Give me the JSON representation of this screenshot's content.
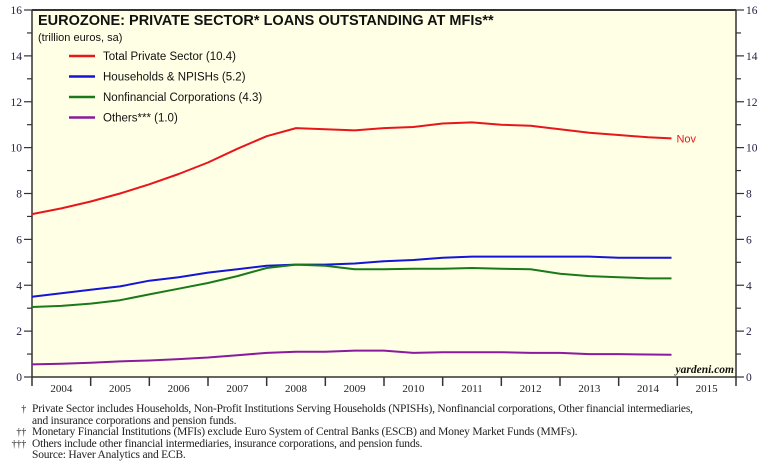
{
  "chart_data": {
    "type": "line",
    "title": "EUROZONE: PRIVATE SECTOR* LOANS OUTSTANDING AT MFIs**",
    "subtitle": "(trillion euros, sa)",
    "xlabel": "",
    "ylabel": "",
    "ylim": [
      0,
      16
    ],
    "xlim": [
      2004,
      2016
    ],
    "y_ticks": [
      "0",
      "2",
      "4",
      "6",
      "8",
      "10",
      "12",
      "14",
      "16"
    ],
    "x_tick_labels": [
      "2004",
      "2005",
      "2006",
      "2007",
      "2008",
      "2009",
      "2010",
      "2011",
      "2012",
      "2013",
      "2014",
      "2015"
    ],
    "grid": false,
    "legend_position": "top-left",
    "watermark": "yardeni.com",
    "end_annotation": "Nov",
    "x": [
      2004.0,
      2004.5,
      2005.0,
      2005.5,
      2006.0,
      2006.5,
      2007.0,
      2007.5,
      2008.0,
      2008.5,
      2009.0,
      2009.5,
      2010.0,
      2010.5,
      2011.0,
      2011.5,
      2012.0,
      2012.5,
      2013.0,
      2013.5,
      2014.0,
      2014.5,
      2014.9
    ],
    "series": [
      {
        "name": "Total Private Sector (10.4)",
        "color": "#e8161b",
        "values": [
          7.1,
          7.35,
          7.65,
          8.0,
          8.4,
          8.85,
          9.35,
          9.95,
          10.5,
          10.85,
          10.8,
          10.75,
          10.85,
          10.9,
          11.05,
          11.1,
          11.0,
          10.95,
          10.8,
          10.65,
          10.55,
          10.45,
          10.4
        ]
      },
      {
        "name": "Households & NPISHs (5.2)",
        "color": "#1515d6",
        "values": [
          3.5,
          3.65,
          3.8,
          3.95,
          4.2,
          4.35,
          4.55,
          4.7,
          4.85,
          4.9,
          4.9,
          4.95,
          5.05,
          5.1,
          5.2,
          5.25,
          5.25,
          5.25,
          5.25,
          5.25,
          5.2,
          5.2,
          5.2
        ]
      },
      {
        "name": "Nonfinancial Corporations (4.3)",
        "color": "#1a7a1a",
        "values": [
          3.05,
          3.1,
          3.2,
          3.35,
          3.6,
          3.85,
          4.1,
          4.4,
          4.75,
          4.9,
          4.85,
          4.7,
          4.7,
          4.72,
          4.72,
          4.75,
          4.72,
          4.7,
          4.5,
          4.4,
          4.35,
          4.3,
          4.3
        ]
      },
      {
        "name": "Others*** (1.0)",
        "color": "#8b1a9c",
        "values": [
          0.55,
          0.58,
          0.62,
          0.68,
          0.72,
          0.78,
          0.85,
          0.95,
          1.05,
          1.1,
          1.1,
          1.15,
          1.15,
          1.05,
          1.08,
          1.08,
          1.08,
          1.05,
          1.05,
          1.0,
          1.0,
          0.98,
          0.97
        ]
      }
    ]
  },
  "footnotes": [
    {
      "mark": "*",
      "text": "Private Sector includes Households, Non-Profit Institutions Serving Households (NPISHs), Nonfinancial corporations, Other financial intermediaries,"
    },
    {
      "mark": "",
      "text": "and insurance corporations and pension funds."
    },
    {
      "mark": "**",
      "text": "Monetary Financial Institutions (MFIs) exclude Euro System of Central Banks (ESCB) and Money Market Funds (MMFs)."
    },
    {
      "mark": "***",
      "text": "Others include other financial intermediaries, insurance corporations, and pension funds."
    },
    {
      "mark": "",
      "text": "Source: Haver Analytics and ECB."
    }
  ],
  "colors": {
    "plot_background": "#ffffe6",
    "axis": "#333333",
    "tick_labels": "#222244"
  }
}
